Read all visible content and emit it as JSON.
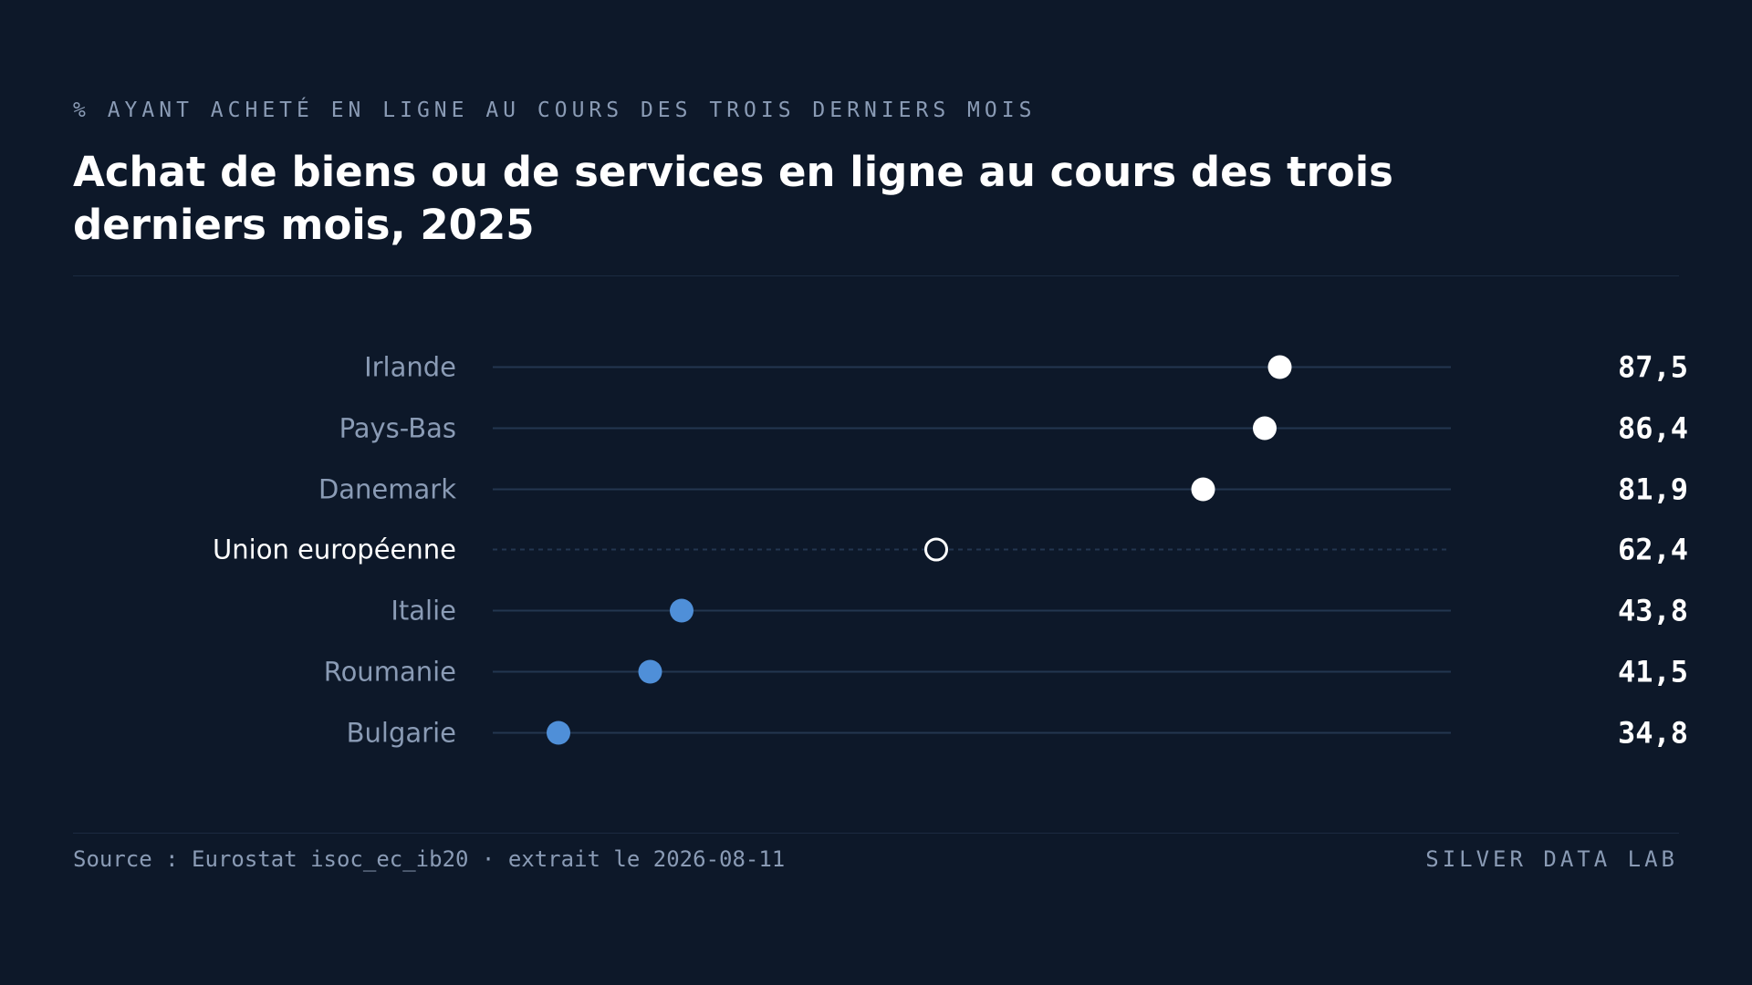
{
  "eyebrow": "% AYANT ACHETÉ EN LIGNE AU COURS DES TROIS DERNIERS MOIS",
  "title": "Achat de biens ou de services en ligne au cours des trois derniers mois, 2025",
  "footer": {
    "source": "Source : Eurostat isoc_ec_ib20 · extrait le 2026-08-11",
    "brand": "SILVER DATA LAB"
  },
  "colors": {
    "background": "#0d1829",
    "high": "#ffffff",
    "low": "#4f8fd8",
    "reference": "#ffffff",
    "track": "#233650",
    "label": "#8a9bb5"
  },
  "chart_data": {
    "type": "dot",
    "xlim": [
      30,
      100
    ],
    "grid": false,
    "categories": [
      "Irlande",
      "Pays-Bas",
      "Danemark",
      "Union européenne",
      "Italie",
      "Roumanie",
      "Bulgarie"
    ],
    "values": [
      87.5,
      86.4,
      81.9,
      62.4,
      43.8,
      41.5,
      34.8
    ],
    "value_labels": [
      "87,5",
      "86,4",
      "81,9",
      "62,4",
      "43,8",
      "41,5",
      "34,8"
    ],
    "groups": [
      "high",
      "high",
      "high",
      "reference",
      "low",
      "low",
      "low"
    ]
  }
}
